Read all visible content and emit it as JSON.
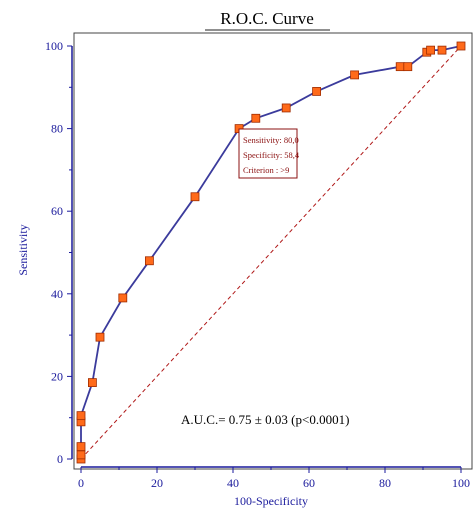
{
  "chart_data": {
    "type": "line",
    "title": "R.O.C. Curve",
    "xlabel": "100-Specificity",
    "ylabel": "Sensitivity",
    "xlim": [
      0,
      100
    ],
    "ylim": [
      0,
      100
    ],
    "xticks": [
      0,
      20,
      40,
      60,
      80,
      100
    ],
    "yticks": [
      0,
      20,
      40,
      60,
      80,
      100
    ],
    "xtick_labels": [
      "0",
      "20",
      "40",
      "60",
      "80",
      "100"
    ],
    "ytick_labels": [
      "0",
      "20",
      "40",
      "60",
      "80",
      "100"
    ],
    "grid": false,
    "series": [
      {
        "x": [
          0,
          0,
          0,
          0,
          0,
          3,
          5,
          11,
          18,
          30,
          41.6,
          46,
          54,
          62,
          72,
          84,
          86,
          91,
          92,
          95,
          100
        ],
        "y": [
          0,
          1,
          3,
          9,
          10.5,
          18.5,
          29.5,
          39,
          48,
          63.5,
          80,
          82.5,
          85,
          89,
          93,
          95,
          95,
          98.5,
          99,
          99,
          100
        ]
      }
    ],
    "reference_line": {
      "x": [
        0,
        100
      ],
      "y": [
        0,
        100
      ]
    },
    "colors": {
      "curve": "#3b3b9c",
      "marker_fill": "#ff6a1a",
      "marker_stroke": "#a02c00",
      "axis": "#1a1a9c",
      "reference": "#b01818",
      "annotation": "#8b1010"
    },
    "annotation": {
      "anchor": {
        "x": 41.6,
        "y": 80
      },
      "lines": [
        "Sensitivity: 80,0",
        "Specificity: 58,4",
        "Criterion : >9"
      ]
    },
    "auc_text": "A.U.C.= 0.75 ± 0.03 (p<0.0001)"
  }
}
